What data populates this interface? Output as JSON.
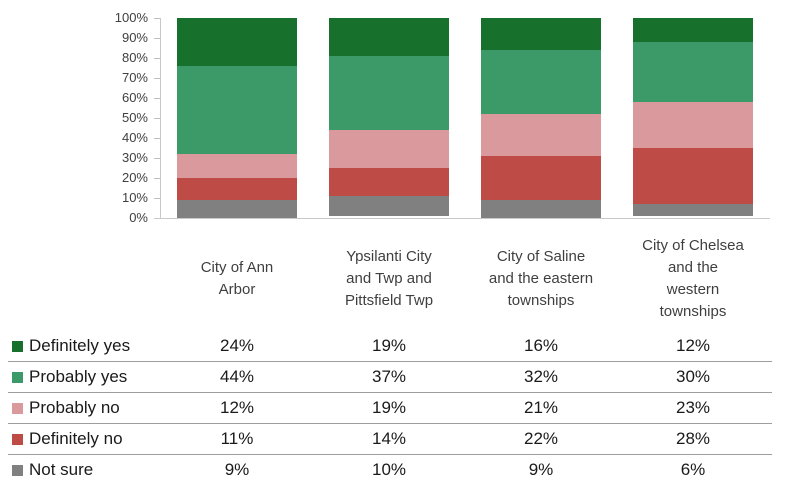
{
  "chart_data": {
    "type": "bar",
    "variant": "stacked-100-percent-column",
    "title": "",
    "xlabel": "",
    "ylabel": "",
    "ylim": [
      0,
      100
    ],
    "grid": false,
    "legend_position": "table-rows-left",
    "ytick_labels_top_to_bottom": [
      "100%",
      "90%",
      "80%",
      "70%",
      "60%",
      "50%",
      "40%",
      "30%",
      "20%",
      "10%",
      "0%"
    ],
    "categories": [
      {
        "label": "City of Ann Arbor",
        "lines": [
          "City of Ann",
          "Arbor"
        ]
      },
      {
        "label": "Ypsilanti City and Twp and Pittsfield Twp",
        "lines": [
          "Ypsilanti City",
          "and Twp and",
          "Pittsfield Twp"
        ]
      },
      {
        "label": "City of Saline and the eastern townships",
        "lines": [
          "City of Saline",
          "and the eastern",
          "townships"
        ]
      },
      {
        "label": "City of Chelsea and the western townships",
        "lines": [
          "City of Chelsea",
          "and the",
          "western",
          "townships"
        ]
      }
    ],
    "series": [
      {
        "name": "Definitely yes",
        "color": "#17702C",
        "values": [
          24,
          19,
          16,
          12
        ]
      },
      {
        "name": "Probably yes",
        "color": "#3C9A68",
        "values": [
          44,
          37,
          32,
          30
        ]
      },
      {
        "name": "Probably no",
        "color": "#DA999D",
        "values": [
          12,
          19,
          21,
          23
        ]
      },
      {
        "name": "Definitely no",
        "color": "#BF4B47",
        "values": [
          11,
          14,
          22,
          28
        ]
      },
      {
        "name": "Not sure",
        "color": "#808080",
        "values": [
          9,
          10,
          9,
          6
        ]
      }
    ],
    "value_suffix": "%"
  },
  "style_colors": {
    "axis_line": "#C9C9C9",
    "tick_mark": "#BFBFBF",
    "row_separator": "#9E9E9E",
    "tick_text": "#404040",
    "category_text": "#3F3F3F",
    "table_text": "#1A1A1A",
    "background": "#FFFFFF"
  }
}
